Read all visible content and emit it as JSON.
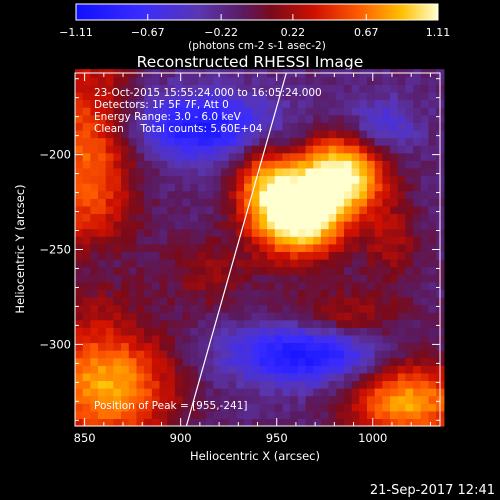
{
  "chart_data": {
    "type": "heatmap",
    "title": "Reconstructed RHESSI Image",
    "xlabel": "Heliocentric X (arcsec)",
    "ylabel": "Heliocentric Y (arcsec)",
    "xlim": [
      845,
      1035
    ],
    "ylim": [
      -343,
      -157
    ],
    "x_ticks": [
      850,
      900,
      950,
      1000
    ],
    "y_ticks": [
      -200,
      -250,
      -300
    ],
    "colorbar": {
      "range": [
        -1.11,
        1.11
      ],
      "ticks": [
        "-1.11",
        "-0.67",
        "-0.22",
        "0.22",
        "0.67",
        "1.11"
      ],
      "unit_label": "(photons cm-2 s-1 asec-2)"
    },
    "annotations": [
      "23-Oct-2015 15:55:24.000 to 16:05:24.000",
      "Detectors: 1F 5F 7F, Att 0",
      "Energy Range: 3.0 - 6.0 keV",
      "Clean     Total counts: 5.60E+04"
    ],
    "peak_label": "Position of Peak = [955,-241]",
    "peak": {
      "x": 955,
      "y": -241
    },
    "limb_line": [
      [
        903,
        -343
      ],
      [
        955,
        -157
      ]
    ],
    "components": [
      {
        "x": 962,
        "y": -230,
        "sx": 16,
        "sy": 16,
        "amp": 1.6
      },
      {
        "x": 985,
        "y": -210,
        "sx": 15,
        "sy": 14,
        "amp": 1.2
      },
      {
        "x": 942,
        "y": -213,
        "sx": 11,
        "sy": 16,
        "amp": 0.6
      },
      {
        "x": 852,
        "y": -205,
        "sx": 17,
        "sy": 45,
        "amp": 0.75
      },
      {
        "x": 862,
        "y": -322,
        "sx": 24,
        "sy": 22,
        "amp": 0.95
      },
      {
        "x": 1018,
        "y": -330,
        "sx": 22,
        "sy": 16,
        "amp": 0.95
      },
      {
        "x": 985,
        "y": -285,
        "sx": 22,
        "sy": 10,
        "amp": 0.4
      },
      {
        "x": 1010,
        "y": -245,
        "sx": 11,
        "sy": 16,
        "amp": 0.35
      },
      {
        "x": 915,
        "y": -262,
        "sx": 16,
        "sy": 14,
        "amp": 0.3
      },
      {
        "x": 912,
        "y": -185,
        "sx": 26,
        "sy": 12,
        "amp": -0.8
      },
      {
        "x": 965,
        "y": -305,
        "sx": 28,
        "sy": 11,
        "amp": -0.85
      },
      {
        "x": 1005,
        "y": -185,
        "sx": 12,
        "sy": 10,
        "amp": -0.4
      },
      {
        "x": 855,
        "y": -255,
        "sx": 12,
        "sy": 12,
        "amp": -0.25
      }
    ],
    "background": -0.18,
    "pixel_arcsec": 4
  },
  "footer_timestamp": "21-Sep-2017 12:41"
}
